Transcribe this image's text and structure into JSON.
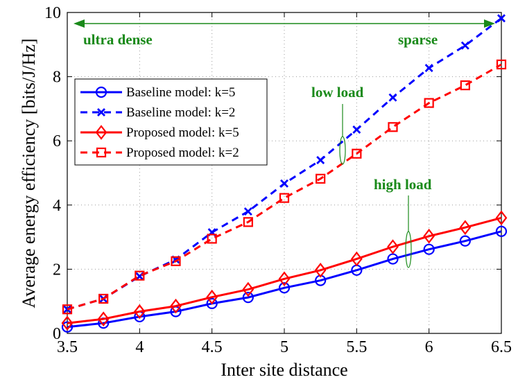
{
  "chart_data": {
    "type": "line",
    "title": "",
    "xlabel": "Inter site distance",
    "ylabel": "Average energy efficiency [bits/J/Hz]",
    "xlim": [
      3.5,
      6.5
    ],
    "ylim": [
      0,
      10
    ],
    "xticks": [
      3.5,
      4,
      4.5,
      5,
      5.5,
      6,
      6.5
    ],
    "xtick_labels": [
      "3.5",
      "4",
      "4.5",
      "5",
      "5.5",
      "6",
      "6.5"
    ],
    "yticks": [
      0,
      2,
      4,
      6,
      8,
      10
    ],
    "ytick_labels": [
      "0",
      "2",
      "4",
      "6",
      "8",
      "10"
    ],
    "grid": true,
    "legend_position": "upper-left",
    "x": [
      3.5,
      3.75,
      4,
      4.25,
      4.5,
      4.75,
      5,
      5.25,
      5.5,
      5.75,
      6,
      6.25,
      6.5
    ],
    "series": [
      {
        "name": "Baseline model: k=5",
        "color": "#0000ff",
        "dash": "solid",
        "marker": "circle",
        "values": [
          0.2,
          0.32,
          0.52,
          0.68,
          0.93,
          1.12,
          1.42,
          1.65,
          1.97,
          2.32,
          2.62,
          2.88,
          3.18
        ]
      },
      {
        "name": "Baseline model: k=2",
        "color": "#0000ff",
        "dash": "dashed",
        "marker": "x",
        "values": [
          0.75,
          1.08,
          1.78,
          2.3,
          3.15,
          3.8,
          4.67,
          5.4,
          6.35,
          7.35,
          8.27,
          8.97,
          9.82
        ]
      },
      {
        "name": "Proposed model: k=5",
        "color": "#ff0000",
        "dash": "solid",
        "marker": "diamond",
        "values": [
          0.32,
          0.45,
          0.68,
          0.85,
          1.13,
          1.37,
          1.7,
          1.97,
          2.32,
          2.7,
          3.03,
          3.3,
          3.6
        ]
      },
      {
        "name": "Proposed model: k=2",
        "color": "#ff0000",
        "dash": "dashed",
        "marker": "square",
        "values": [
          0.75,
          1.08,
          1.8,
          2.25,
          2.95,
          3.47,
          4.22,
          4.82,
          5.6,
          6.43,
          7.18,
          7.73,
          8.38
        ]
      }
    ],
    "annotations": {
      "ultra_dense": "ultra dense",
      "sparse": "sparse",
      "low_load": "low load",
      "high_load": "high load"
    }
  }
}
